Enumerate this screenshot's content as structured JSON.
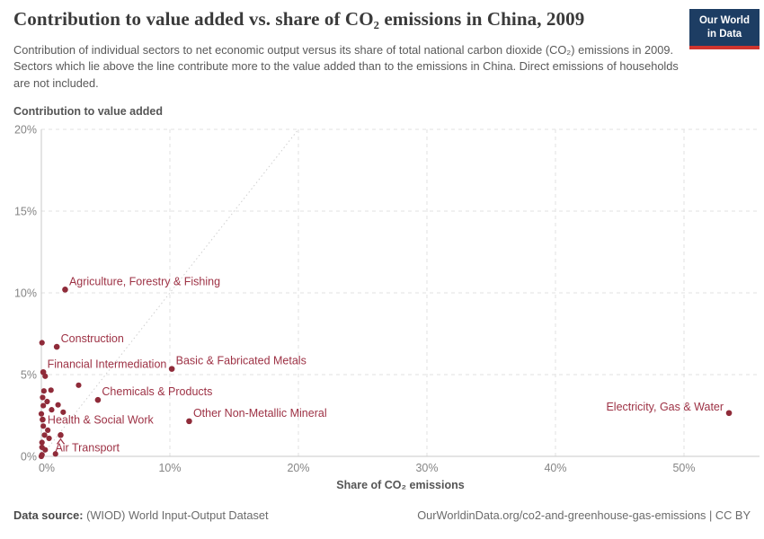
{
  "header": {
    "title": "Contribution to value added vs. share of CO₂ emissions in China, 2009",
    "subtitle": "Contribution of individual sectors to net economic output versus its share of total national carbon dioxide (CO₂) emissions in 2009. Sectors which lie above the line contribute more to the value added than to the emissions in China. Direct emissions of households are not included.",
    "logo": {
      "line1": "Our World",
      "line2": "in Data",
      "bg_color": "#1d3d63",
      "accent_color": "#cf342e"
    }
  },
  "chart_data": {
    "type": "scatter",
    "title": "Contribution to value added vs. share of CO₂ emissions in China, 2009",
    "xlabel": "Share of CO₂ emissions",
    "ylabel": "Contribution to value added",
    "xlim": [
      0,
      55.9
    ],
    "ylim": [
      0,
      20
    ],
    "x_ticks": [
      0,
      10,
      20,
      30,
      40,
      50
    ],
    "y_ticks": [
      0,
      5,
      10,
      15,
      20
    ],
    "tick_suffix": "%",
    "grid": true,
    "reference_line": "y equals x diagonal (equal share line)",
    "point_color": "#8f2b39",
    "label_color": "#9d3144",
    "grid_color": "#e2e2e2",
    "axis_color": "#c9c9c9",
    "tick_text_color": "#858585",
    "labeled_points": [
      {
        "label": "Agriculture, Forestry & Fishing",
        "x": 1.85,
        "y": 10.2,
        "placement": "above-right"
      },
      {
        "label": "Construction",
        "x": 1.2,
        "y": 6.7,
        "placement": "above-right"
      },
      {
        "label": "Financial Intermediation",
        "x": 0.15,
        "y": 5.15,
        "placement": "above-right"
      },
      {
        "label": "Basic & Fabricated Metals",
        "x": 10.15,
        "y": 5.35,
        "placement": "above-right"
      },
      {
        "label": "Chemicals & Products",
        "x": 4.4,
        "y": 3.45,
        "placement": "above-right"
      },
      {
        "label": "Other Non-Metallic Mineral",
        "x": 11.5,
        "y": 2.15,
        "placement": "above-right"
      },
      {
        "label": "Health & Social Work",
        "x": 0.1,
        "y": 2.25,
        "placement": "right"
      },
      {
        "label": "Air Transport",
        "x": 1.5,
        "y": 1.3,
        "placement": "below-caret"
      },
      {
        "label": "Electricity, Gas & Water",
        "x": 53.5,
        "y": 2.65,
        "placement": "left"
      }
    ],
    "unlabeled_points": [
      {
        "x": 0.05,
        "y": 6.95
      },
      {
        "x": 0.3,
        "y": 4.9
      },
      {
        "x": 2.9,
        "y": 4.35
      },
      {
        "x": 0.2,
        "y": 4.0
      },
      {
        "x": 0.75,
        "y": 4.05
      },
      {
        "x": 0.1,
        "y": 3.6
      },
      {
        "x": 0.45,
        "y": 3.35
      },
      {
        "x": 0.15,
        "y": 3.1
      },
      {
        "x": 1.3,
        "y": 3.15
      },
      {
        "x": 0.8,
        "y": 2.85
      },
      {
        "x": 1.7,
        "y": 2.7
      },
      {
        "x": 0.0,
        "y": 2.6
      },
      {
        "x": 0.15,
        "y": 1.85
      },
      {
        "x": 0.5,
        "y": 1.6
      },
      {
        "x": 0.25,
        "y": 1.3
      },
      {
        "x": 0.6,
        "y": 1.1
      },
      {
        "x": 0.05,
        "y": 0.85
      },
      {
        "x": 0.05,
        "y": 0.55
      },
      {
        "x": 0.3,
        "y": 0.4
      },
      {
        "x": 1.1,
        "y": 0.15
      },
      {
        "x": 0.05,
        "y": 0.1
      },
      {
        "x": 0.0,
        "y": 0.0
      }
    ]
  },
  "footer": {
    "source_label": "Data source:",
    "source_text": " (WIOD) World Input-Output Dataset",
    "link_text": "OurWorldinData.org/co2-and-greenhouse-gas-emissions | CC BY"
  }
}
